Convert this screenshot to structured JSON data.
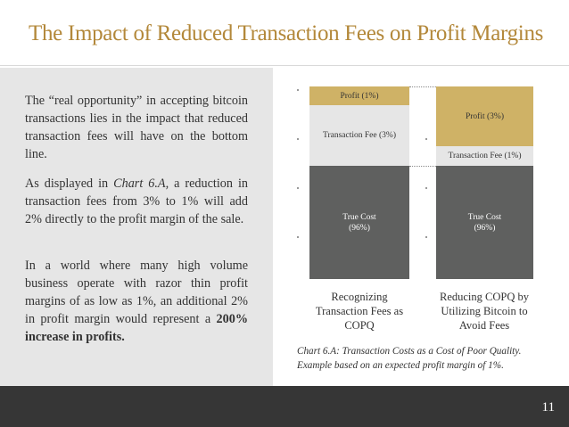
{
  "slide": {
    "title": "The Impact of Reduced Transaction Fees on Profit Margins",
    "page_number": "11"
  },
  "text": {
    "p1": "The “real opportunity” in accepting bitcoin transactions lies in the impact that reduced transaction fees will have on the bottom line.",
    "p2_prefix": "As displayed in ",
    "p2_ref": "Chart 6.A,",
    "p2_suffix": " a reduction in transaction fees from 3% to 1% will add 2% directly to the profit margin of the sale.",
    "p3_prefix": "In a world where many high volume business operate with razor thin profit margins of as low as 1%, an additional 2% in profit margin would represent a ",
    "p3_bold": "200% increase in profits."
  },
  "chart": {
    "caption": "Chart 6.A: Transaction Costs as a Cost of Poor Quality. Example based on an expected profit margin of 1%.",
    "bars": [
      {
        "category": "Recognizing Transaction Fees as COPQ",
        "segments": [
          {
            "label": "True Cost",
            "sublabel": "(96%)",
            "value": 96,
            "color": "#5f605f"
          },
          {
            "label": "Transaction Fee (3%)",
            "value": 3,
            "color": "#e6e6e6"
          },
          {
            "label": "Profit (1%)",
            "value": 1,
            "color": "#cfb266"
          }
        ]
      },
      {
        "category": "Reducing COPQ by Utilizing Bitcoin to Avoid Fees",
        "segments": [
          {
            "label": "True Cost",
            "sublabel": "(96%)",
            "value": 96,
            "color": "#5f605f"
          },
          {
            "label": "Transaction Fee (1%)",
            "value": 1,
            "color": "#e6e6e6"
          },
          {
            "label": "Profit (3%)",
            "value": 3,
            "color": "#cfb266"
          }
        ]
      }
    ]
  }
}
